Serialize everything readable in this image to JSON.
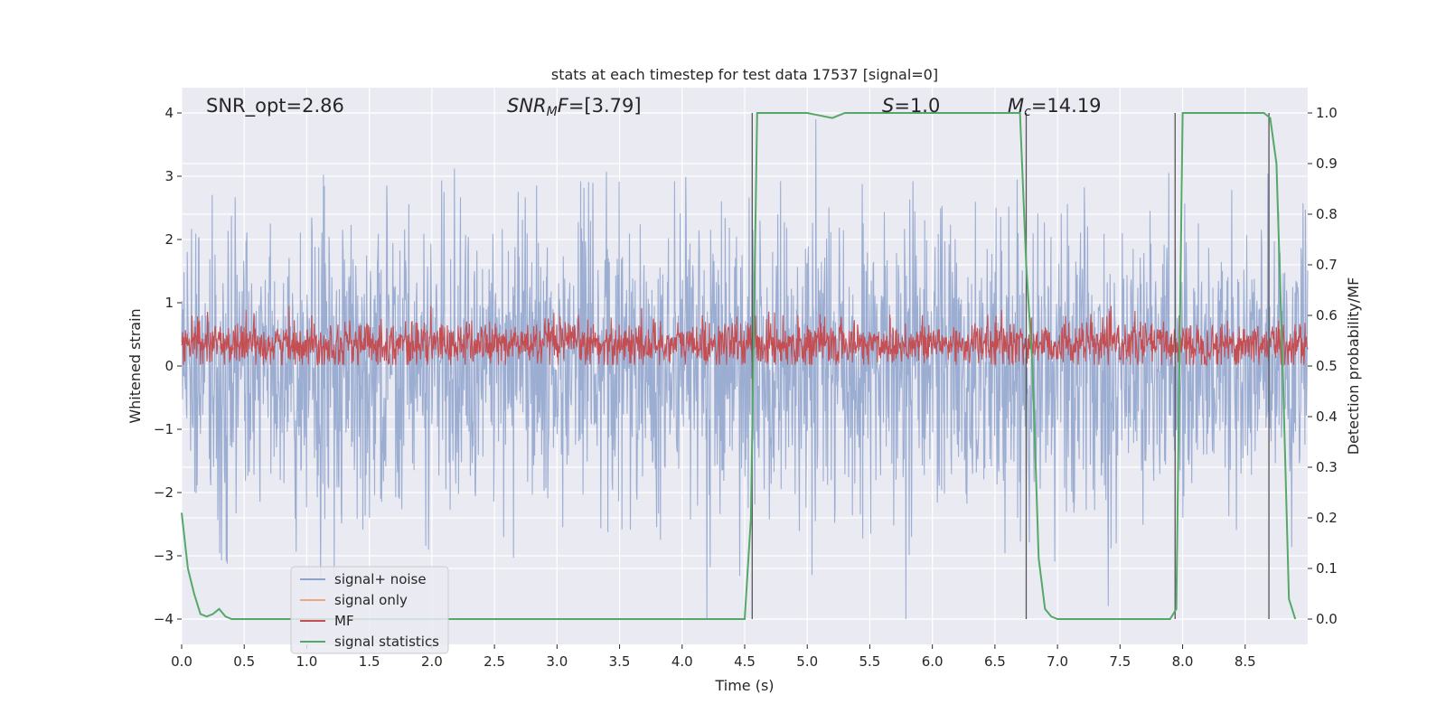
{
  "chart_data": {
    "type": "line",
    "title": "stats at each timestep for test data 17537 [signal=0]",
    "xlabel": "Time (s)",
    "ylabel": "Whitened strain",
    "y2label": "Detection probability/MF",
    "xlim": [
      0,
      9.0
    ],
    "ylim": [
      -4.4,
      4.4
    ],
    "y2lim": [
      -0.05,
      1.05
    ],
    "xticks": [
      "0.0",
      "0.5",
      "1.0",
      "1.5",
      "2.0",
      "2.5",
      "3.0",
      "3.5",
      "4.0",
      "4.5",
      "5.0",
      "5.5",
      "6.0",
      "6.5",
      "7.0",
      "7.5",
      "8.0",
      "8.5"
    ],
    "yticks": [
      "−4",
      "−3",
      "−2",
      "−1",
      "0",
      "1",
      "2",
      "3",
      "4"
    ],
    "y2ticks": [
      "0.0",
      "0.1",
      "0.2",
      "0.3",
      "0.4",
      "0.5",
      "0.6",
      "0.7",
      "0.8",
      "0.9",
      "1.0"
    ],
    "grid": true,
    "legend_position": "lower-left",
    "annotations": {
      "snr_opt": "SNR_opt=2.86",
      "snr_mf": "=[3.79]",
      "s": "=1.0",
      "mc": "=14.19"
    },
    "series": [
      {
        "name": "signal+ noise",
        "color": "#8ea2cc",
        "description_values": {
          "approx_range": [
            -4.0,
            3.9
          ],
          "sample_rate_hz": 2048
        }
      },
      {
        "name": "signal only",
        "color": "#f0a583",
        "values": []
      },
      {
        "name": "MF",
        "color": "#c44e52",
        "description_values": {
          "approx_range": [
            0.0,
            0.95
          ],
          "axis": "left"
        }
      },
      {
        "name": "signal statistics",
        "color": "#55a868",
        "axis": "right",
        "x": [
          0.0,
          0.05,
          0.1,
          0.15,
          0.2,
          0.25,
          0.3,
          0.35,
          0.4,
          0.45,
          0.5,
          1.0,
          2.0,
          3.0,
          4.0,
          4.5,
          4.55,
          4.6,
          4.65,
          5.0,
          5.1,
          5.2,
          5.3,
          5.5,
          6.0,
          6.5,
          6.7,
          6.75,
          6.8,
          6.85,
          6.9,
          6.95,
          7.0,
          7.1,
          7.5,
          7.9,
          7.95,
          8.0,
          8.05,
          8.5,
          8.65,
          8.7,
          8.75,
          8.8,
          8.85,
          8.9
        ],
        "y": [
          0.21,
          0.1,
          0.05,
          0.01,
          0.005,
          0.01,
          0.02,
          0.005,
          0.0,
          0.0,
          0.0,
          0.0,
          0.0,
          0.0,
          0.0,
          0.0,
          0.2,
          1.0,
          1.0,
          1.0,
          0.995,
          0.99,
          1.0,
          1.0,
          1.0,
          1.0,
          1.0,
          0.7,
          0.5,
          0.12,
          0.02,
          0.005,
          0.0,
          0.0,
          0.0,
          0.0,
          0.02,
          1.0,
          1.0,
          1.0,
          1.0,
          0.99,
          0.9,
          0.5,
          0.04,
          0.0
        ]
      }
    ],
    "vertical_lines_x": [
      4.56,
      6.75,
      7.94,
      8.69
    ]
  }
}
